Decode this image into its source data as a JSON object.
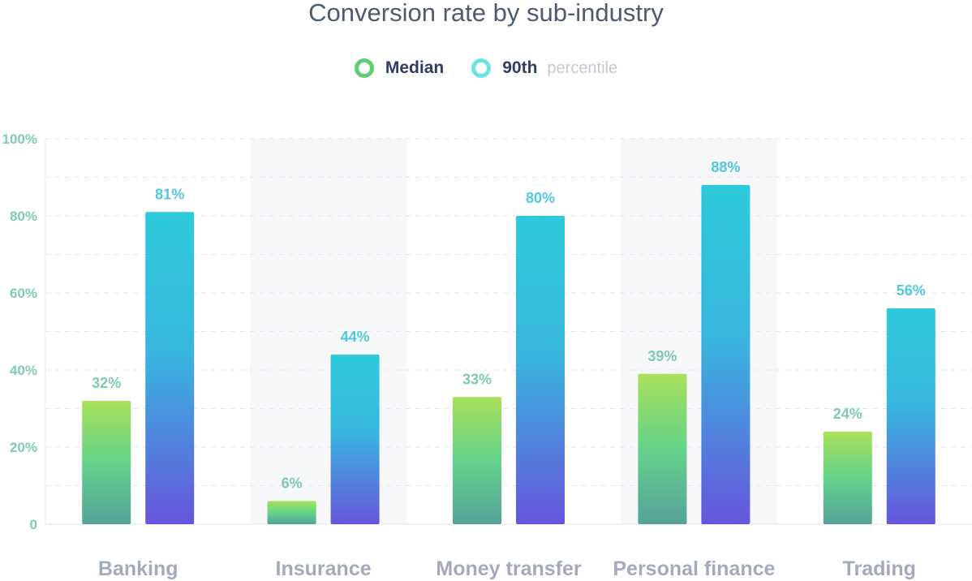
{
  "chart_data": {
    "type": "bar",
    "title": "Conversion rate by sub-industry",
    "categories": [
      "Banking",
      "Insurance",
      "Money transfer",
      "Personal finance",
      "Trading"
    ],
    "series": [
      {
        "name": "Median",
        "values": [
          32,
          6,
          33,
          39,
          24
        ],
        "labels": [
          "32%",
          "6%",
          "33%",
          "39%",
          "24%"
        ]
      },
      {
        "name": "90th",
        "values": [
          81,
          44,
          80,
          88,
          56
        ],
        "labels": [
          "81%",
          "44%",
          "80%",
          "88%",
          "56%"
        ]
      }
    ],
    "legend_note": "percentile",
    "legend_position": "top-center",
    "ylim": [
      0,
      100
    ],
    "yticks": [
      0,
      20,
      40,
      60,
      80,
      100
    ],
    "ytick_labels": [
      "0",
      "20%",
      "40%",
      "60%",
      "80%",
      "100%"
    ],
    "xlabel": "",
    "ylabel": "",
    "grid": true,
    "colors": {
      "median_top": "#a8e05a",
      "median_bottom": "#56a29a",
      "p90_top": "#2ecadb",
      "p90_bottom": "#6655dc",
      "median_label": "#7fc9b5",
      "p90_label": "#52c8dc",
      "band": "#f6f7f8",
      "grid": "#e3e6ea"
    }
  }
}
